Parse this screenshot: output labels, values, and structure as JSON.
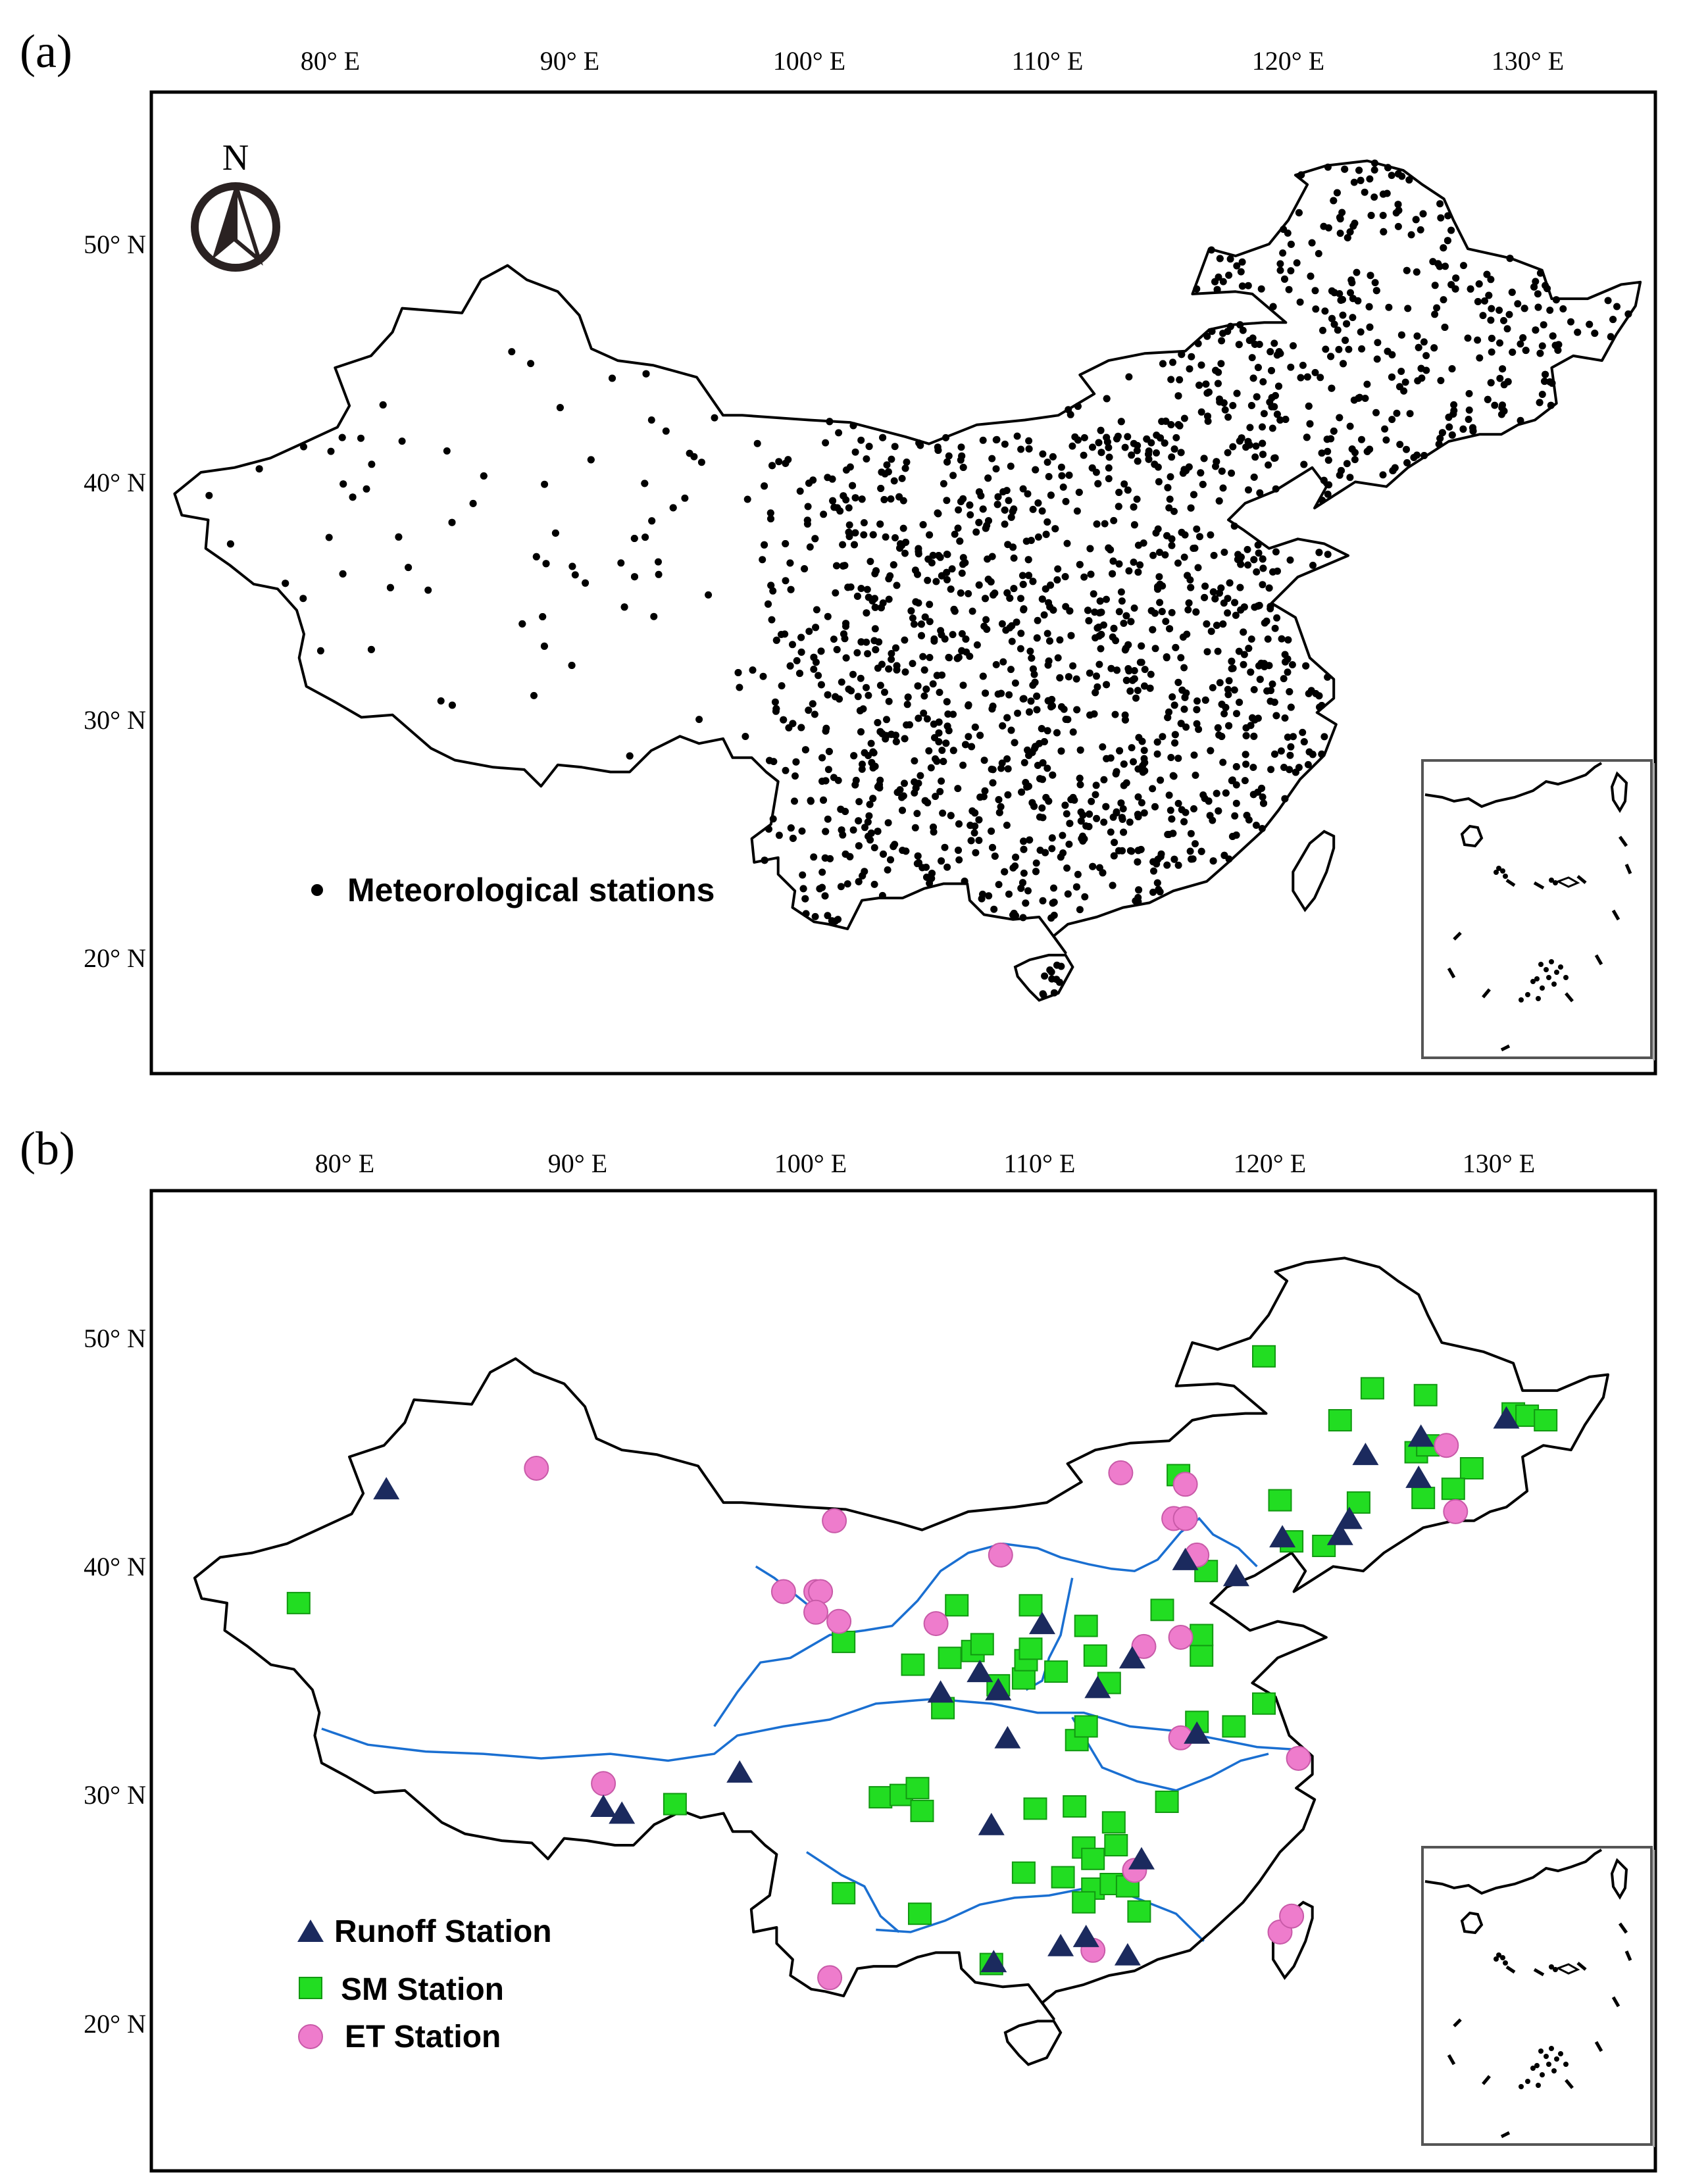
{
  "figure": {
    "panels": [
      {
        "id": "a",
        "label": "(a)",
        "north_arrow_label": "N",
        "lon_ticks": [
          "80° E",
          "90° E",
          "100° E",
          "110° E",
          "120° E",
          "130° E"
        ],
        "lat_ticks": [
          "50° N",
          "40° N",
          "30° N",
          "20° N"
        ],
        "legend": [
          {
            "symbol": "dot",
            "label": "Meteorological stations",
            "color": "#000000"
          }
        ]
      },
      {
        "id": "b",
        "label": "(b)",
        "lon_ticks": [
          "80° E",
          "90° E",
          "100° E",
          "110° E",
          "120° E",
          "130° E"
        ],
        "lat_ticks": [
          "50° N",
          "40° N",
          "30° N",
          "20° N"
        ],
        "legend": [
          {
            "symbol": "triangle",
            "label": "Runoff Station",
            "color": "#1b2a5e"
          },
          {
            "symbol": "square",
            "label": "SM Station",
            "color": "#22dd22"
          },
          {
            "symbol": "circle",
            "label": "ET Station",
            "color": "#ee7ccc"
          }
        ]
      }
    ]
  },
  "colors": {
    "border": "#000000",
    "river": "#1a6fd1",
    "runoff": "#1b2a5e",
    "sm": "#22dd22",
    "sm_stroke": "#119911",
    "et": "#ee7ccc",
    "et_stroke": "#c85aa8"
  },
  "map_extent": {
    "lon_min": 72,
    "lon_max": 135,
    "lat_min": 15,
    "lat_max": 55
  },
  "stations_b": {
    "runoff": [
      [
        81.8,
        43.4
      ],
      [
        91.2,
        29.5
      ],
      [
        92.0,
        29.2
      ],
      [
        97.1,
        31.0
      ],
      [
        105.8,
        34.5
      ],
      [
        107.5,
        35.4
      ],
      [
        108.3,
        34.6
      ],
      [
        108.7,
        32.5
      ],
      [
        108.0,
        28.7
      ],
      [
        110.2,
        37.5
      ],
      [
        112.6,
        34.7
      ],
      [
        114.1,
        36.0
      ],
      [
        116.4,
        40.3
      ],
      [
        118.6,
        39.6
      ],
      [
        116.9,
        32.7
      ],
      [
        120.6,
        41.3
      ],
      [
        123.1,
        41.4
      ],
      [
        123.5,
        42.1
      ],
      [
        124.2,
        44.9
      ],
      [
        126.6,
        45.7
      ],
      [
        126.5,
        43.9
      ],
      [
        130.3,
        46.5
      ],
      [
        111.0,
        23.4
      ],
      [
        112.1,
        23.8
      ],
      [
        113.9,
        23.0
      ],
      [
        114.5,
        27.2
      ],
      [
        108.1,
        22.7
      ]
    ],
    "sm": [
      [
        78.0,
        38.4
      ],
      [
        101.6,
        36.7
      ],
      [
        94.3,
        29.6
      ],
      [
        101.6,
        25.7
      ],
      [
        103.2,
        29.9
      ],
      [
        104.1,
        30.0
      ],
      [
        104.8,
        30.3
      ],
      [
        105.0,
        29.3
      ],
      [
        104.9,
        24.8
      ],
      [
        104.6,
        35.7
      ],
      [
        105.9,
        33.8
      ],
      [
        106.2,
        36.0
      ],
      [
        106.5,
        38.3
      ],
      [
        107.2,
        36.3
      ],
      [
        107.6,
        36.6
      ],
      [
        108.3,
        34.8
      ],
      [
        109.4,
        35.1
      ],
      [
        109.5,
        35.9
      ],
      [
        109.7,
        36.4
      ],
      [
        109.7,
        38.3
      ],
      [
        110.8,
        35.4
      ],
      [
        112.1,
        37.4
      ],
      [
        112.5,
        36.1
      ],
      [
        111.7,
        32.4
      ],
      [
        112.1,
        33.0
      ],
      [
        113.1,
        34.9
      ],
      [
        115.4,
        38.1
      ],
      [
        116.1,
        44.0
      ],
      [
        117.3,
        39.8
      ],
      [
        117.1,
        36.1
      ],
      [
        117.1,
        37.0
      ],
      [
        116.9,
        33.2
      ],
      [
        118.5,
        33.0
      ],
      [
        119.8,
        34.0
      ],
      [
        119.8,
        49.2
      ],
      [
        120.5,
        42.9
      ],
      [
        121.0,
        41.1
      ],
      [
        122.4,
        40.9
      ],
      [
        123.1,
        46.4
      ],
      [
        123.9,
        42.8
      ],
      [
        124.5,
        47.8
      ],
      [
        126.4,
        45.0
      ],
      [
        126.8,
        47.5
      ],
      [
        126.7,
        43.0
      ],
      [
        126.9,
        45.3
      ],
      [
        128.8,
        44.3
      ],
      [
        128.0,
        43.4
      ],
      [
        130.6,
        46.7
      ],
      [
        131.2,
        46.6
      ],
      [
        132.0,
        46.4
      ],
      [
        109.9,
        29.4
      ],
      [
        111.6,
        29.5
      ],
      [
        112.0,
        27.7
      ],
      [
        113.3,
        28.8
      ],
      [
        113.4,
        27.8
      ],
      [
        112.4,
        27.2
      ],
      [
        111.1,
        26.4
      ],
      [
        109.4,
        26.6
      ],
      [
        112.4,
        25.9
      ],
      [
        113.2,
        26.1
      ],
      [
        113.9,
        26.0
      ],
      [
        112.0,
        25.3
      ],
      [
        115.6,
        29.7
      ],
      [
        114.4,
        24.9
      ],
      [
        108.0,
        22.6
      ]
    ],
    "et": [
      [
        88.3,
        44.3
      ],
      [
        91.2,
        30.5
      ],
      [
        101.0,
        22.0
      ],
      [
        101.2,
        42.0
      ],
      [
        99.0,
        38.9
      ],
      [
        100.4,
        38.9
      ],
      [
        100.6,
        38.9
      ],
      [
        100.4,
        38.0
      ],
      [
        101.4,
        37.6
      ],
      [
        105.6,
        37.5
      ],
      [
        108.4,
        40.5
      ],
      [
        113.6,
        44.1
      ],
      [
        115.9,
        42.1
      ],
      [
        116.4,
        42.1
      ],
      [
        116.4,
        43.6
      ],
      [
        116.9,
        40.5
      ],
      [
        116.2,
        36.9
      ],
      [
        114.6,
        36.5
      ],
      [
        116.2,
        32.5
      ],
      [
        121.3,
        31.6
      ],
      [
        114.2,
        26.7
      ],
      [
        112.4,
        23.2
      ],
      [
        120.5,
        24.0
      ],
      [
        121.0,
        24.7
      ],
      [
        127.7,
        45.3
      ],
      [
        128.1,
        42.4
      ]
    ]
  }
}
